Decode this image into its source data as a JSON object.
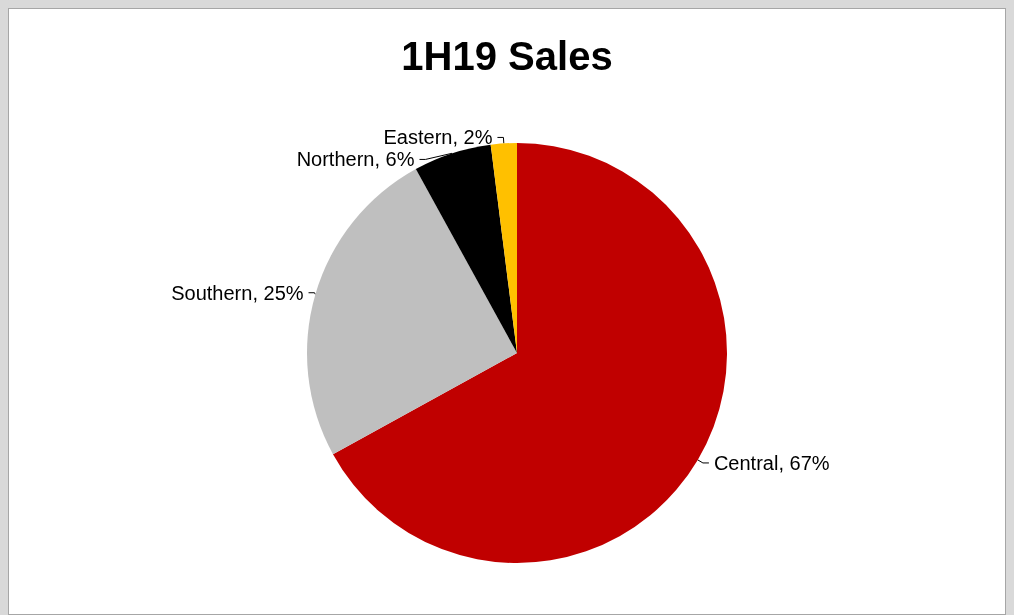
{
  "chart_data": {
    "type": "pie",
    "title": "1H19 Sales",
    "categories": [
      "Central",
      "Southern",
      "Northern",
      "Eastern"
    ],
    "values": [
      67,
      25,
      6,
      2
    ],
    "colors": [
      "#c00000",
      "#bfbfbf",
      "#000000",
      "#ffc000"
    ],
    "value_labels": [
      "67%",
      "25%",
      "6%",
      "2%"
    ]
  }
}
